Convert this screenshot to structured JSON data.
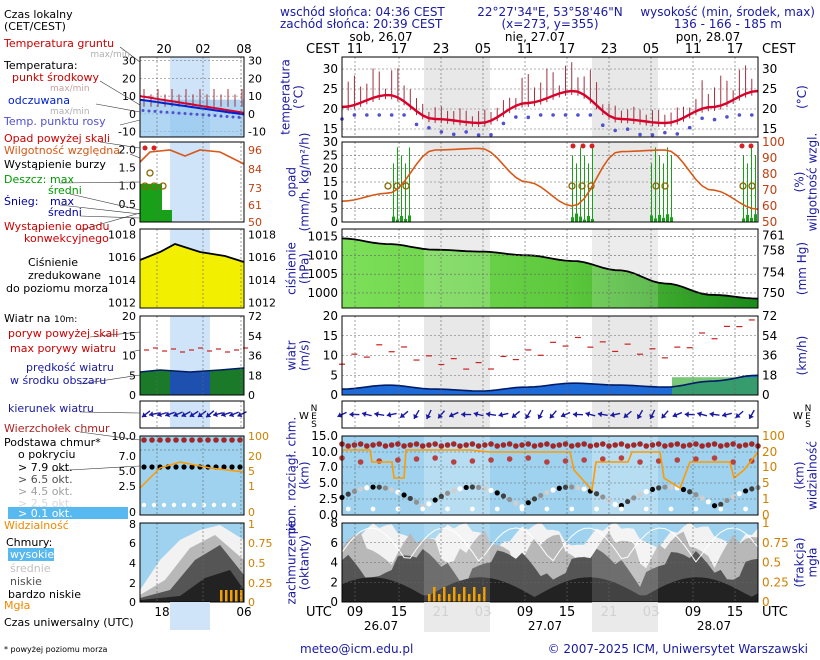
{
  "header": {
    "sunrise": "wschód słońca: 04:36 CEST",
    "sunset": "zachód słońca: 20:39 CEST",
    "coords": "22°27'34\"E, 53°58'46\"N",
    "grid": "(x=273, y=355)",
    "elevation_label": "wysokość (min, środek, max)",
    "elevation_values": "136 - 166 - 185 m"
  },
  "legend": {
    "time_label_1": "Czas lokalny",
    "time_label_2": "(CET/CEST)",
    "ground_temp": "Temperatura gruntu",
    "ground_temp_sub": "max/min",
    "temp_title": "Temperatura:",
    "temp_mid": "punkt środkowy",
    "temp_maxmin": "max/min",
    "temp_felt": "odczuwana",
    "temp_felt_sub": "max/min",
    "dew_point": "Temp. punktu rosy",
    "precip_above": "Opad powyżej skali",
    "humidity": "Wilgotność względna",
    "storm": "Wystąpienie burzy",
    "rain": "Deszcz:",
    "rain_max": "max",
    "rain_mean": "średni",
    "snow": "Śnieg:",
    "snow_max": "max",
    "snow_mean": "średni",
    "conv_1": "Wystąpienie opadu",
    "conv_2": "konwekcyjnego",
    "pressure_1": "Ciśnienie",
    "pressure_2": "zredukowane",
    "pressure_3": "do poziomu morza",
    "wind_title": "Wiatr na",
    "wind_height": "10m:",
    "gust_above": "poryw powyżej skali",
    "gust_max": "max porywy wiatru",
    "wind_mean_1": "prędkość wiatru",
    "wind_mean_2": "w środku obszaru",
    "wind_dir": "kierunek wiatru",
    "cloud_top": "Wierzchołek chmur",
    "cloud_base_1": "Podstawa chmur*",
    "cloud_base_2": "o pokryciu",
    "okt_79": "> 7.9 okt.",
    "okt_65": "> 6.5 okt.",
    "okt_45": "> 4.5 okt.",
    "okt_25": "> 2.5 okt.",
    "okt_01": "> 0.1 okt.",
    "visibility": "Widzialność",
    "clouds": "Chmury:",
    "cl_high": "wysokie",
    "cl_mid": "średnie",
    "cl_low": "niskie",
    "cl_vlow": "bardzo niskie",
    "fog": "Mgła",
    "utc_label": "Czas uniwersalny (UTC)",
    "footnote": "* powyżej poziomu morza"
  },
  "panel_labels": {
    "temperature": [
      "temperatura",
      "(°C)"
    ],
    "precip": [
      "opad",
      "(mm/h, kg/m²/h)"
    ],
    "humidity": [
      "wilgotność wzgl.",
      "(%)"
    ],
    "pressure": [
      "ciśnienie",
      "(hPa)"
    ],
    "pressure_mm": [
      "(mm Hg)"
    ],
    "wind": [
      "wiatr",
      "(m/s)"
    ],
    "wind_kmh": [
      "(km/h)"
    ],
    "cloud_base": [
      "pion. rozciągł. chm.",
      "(km)"
    ],
    "visibility": [
      "widzialność",
      "(km)"
    ],
    "cloud_cover": [
      "zachmurzenie",
      "(oktanty)"
    ],
    "fog": [
      "mgła",
      "(frakcja)"
    ]
  },
  "axes": {
    "cest": "CEST",
    "utc": "UTC",
    "local_ticks": [
      "11",
      "17",
      "23",
      "05",
      "11",
      "17",
      "23",
      "05",
      "11",
      "17"
    ],
    "utc_ticks": [
      "09",
      "15",
      "21",
      "03",
      "09",
      "15",
      "21",
      "03",
      "09",
      "15"
    ],
    "days_top": [
      "sob, 26.07",
      "nie, 27.07",
      "pon, 28.07"
    ],
    "days_bottom": [
      "26.07",
      "27.07",
      "28.07"
    ],
    "legend_local_ticks": [
      "20",
      "02",
      "08"
    ],
    "legend_utc_ticks": [
      "18",
      "00",
      "06"
    ],
    "temp_ticks": [
      "30",
      "25",
      "20",
      "15"
    ],
    "precip_ticks": [
      "30",
      "25",
      "20",
      "15",
      "10",
      "5",
      "0"
    ],
    "humidity_ticks": [
      "100",
      "90",
      "80",
      "70",
      "60",
      "50"
    ],
    "pressure_ticks": [
      "1015",
      "1010",
      "1005",
      "1000"
    ],
    "pressure_mm_ticks": [
      "761",
      "758",
      "754",
      "750"
    ],
    "wind_ticks": [
      "20",
      "15",
      "10",
      "5",
      "0"
    ],
    "wind_kmh_ticks": [
      "72",
      "54",
      "36",
      "18",
      "0"
    ],
    "cb_ticks": [
      "15.0",
      "10.0",
      "7.0",
      "5.0",
      "2.5",
      "0.0"
    ],
    "vis_ticks": [
      "100",
      "20",
      "10",
      "5",
      "1",
      "0"
    ],
    "cc_ticks": [
      "8",
      "6",
      "4",
      "2",
      "0"
    ],
    "fog_ticks": [
      "1",
      "0.75",
      "0.5",
      "0.25",
      "0"
    ],
    "leg_temp_ticks": [
      "30",
      "20",
      "10",
      "0",
      "-10"
    ],
    "leg_temp_ticks_r": [
      "30",
      "20",
      "10",
      "0",
      "-10"
    ],
    "leg_pr_ticks": [
      "2.0",
      "1.5",
      "1.0",
      "0.5",
      "0"
    ],
    "leg_hum_ticks": [
      "96",
      "84",
      "73",
      "61",
      "50"
    ],
    "leg_pres_ticks": [
      "1018",
      "1016",
      "1014",
      "1012"
    ],
    "leg_wind_ticks": [
      "20",
      "15",
      "10",
      "5",
      "0"
    ],
    "leg_wind_ticks_r": [
      "72",
      "54",
      "36",
      "18",
      "0"
    ],
    "leg_cb_ticks": [
      "10.0",
      "7.0",
      "5.0",
      "2.5",
      "0",
      "8"
    ],
    "leg_vis_ticks": [
      "100",
      "20",
      "5",
      "1",
      "0",
      "1"
    ],
    "leg_cc_ticks": [
      "6",
      "4",
      "2",
      "0"
    ],
    "leg_fog_ticks": [
      "0.75",
      "0.5",
      "0.25",
      "0"
    ],
    "compass": {
      "n": "N",
      "w": "W",
      "e": "E",
      "s": "S"
    }
  },
  "footer": {
    "email": "meteo@icm.edu.pl",
    "copyright": "© 2007-2025 ICM, Uniwersytet Warszawski"
  },
  "colors": {
    "temp_line": "#d8002a",
    "felt_line": "#0022cc",
    "dew_point": "#5050d0",
    "humidity_line": "#d85818",
    "pressure_fill": "#6ed84a",
    "pressure_fill_end": "#1a8c1a",
    "wind_fill": "#1e6bd8",
    "cloud_sky": "#9ed2ee",
    "visibility_line": "#ff9a00",
    "fog_bar": "#f0a000",
    "night_band": "#e8e8e8"
  },
  "chart_data": [
    {
      "type": "line",
      "title": "temperatura",
      "ylabel": "(°C)",
      "ylim": [
        13,
        33
      ],
      "x": [
        "sob 11",
        "17",
        "23",
        "nie 05",
        "11",
        "17",
        "23",
        "pon 05",
        "11",
        "17"
      ],
      "series": [
        {
          "values": [
            20.5,
            23.5,
            17.5,
            16.5,
            21.5,
            24.5,
            17.5,
            16.5,
            20.5,
            24.5
          ]
        }
      ]
    },
    {
      "type": "line",
      "title": "wilgotność wzgl.",
      "ylabel": "(%)",
      "ylim": [
        50,
        100
      ],
      "x": [
        "sob 11",
        "17",
        "23",
        "nie 05",
        "11",
        "17",
        "23",
        "pon 05",
        "11",
        "17"
      ],
      "series": [
        {
          "values": [
            63,
            68,
            95,
            96,
            75,
            60,
            94,
            95,
            70,
            58
          ]
        }
      ]
    },
    {
      "type": "area",
      "title": "ciśnienie",
      "ylabel": "(hPa)",
      "ylim": [
        996,
        1017
      ],
      "x": [
        "sob 11",
        "17",
        "23",
        "nie 05",
        "11",
        "17",
        "23",
        "pon 05",
        "11",
        "17"
      ],
      "series": [
        {
          "values": [
            1014.5,
            1013,
            1011.5,
            1011,
            1010,
            1008.5,
            1006,
            1002.5,
            999.5,
            998.5
          ]
        }
      ]
    },
    {
      "type": "area",
      "title": "wiatr",
      "ylabel": "(m/s)",
      "ylim": [
        0,
        20
      ],
      "x": [
        "sob 11",
        "17",
        "23",
        "nie 05",
        "11",
        "17",
        "23",
        "pon 05",
        "11",
        "17"
      ],
      "series": [
        {
          "values": [
            1.5,
            2.5,
            1.5,
            1,
            2,
            3,
            2.5,
            2,
            3.5,
            5
          ]
        }
      ]
    }
  ]
}
